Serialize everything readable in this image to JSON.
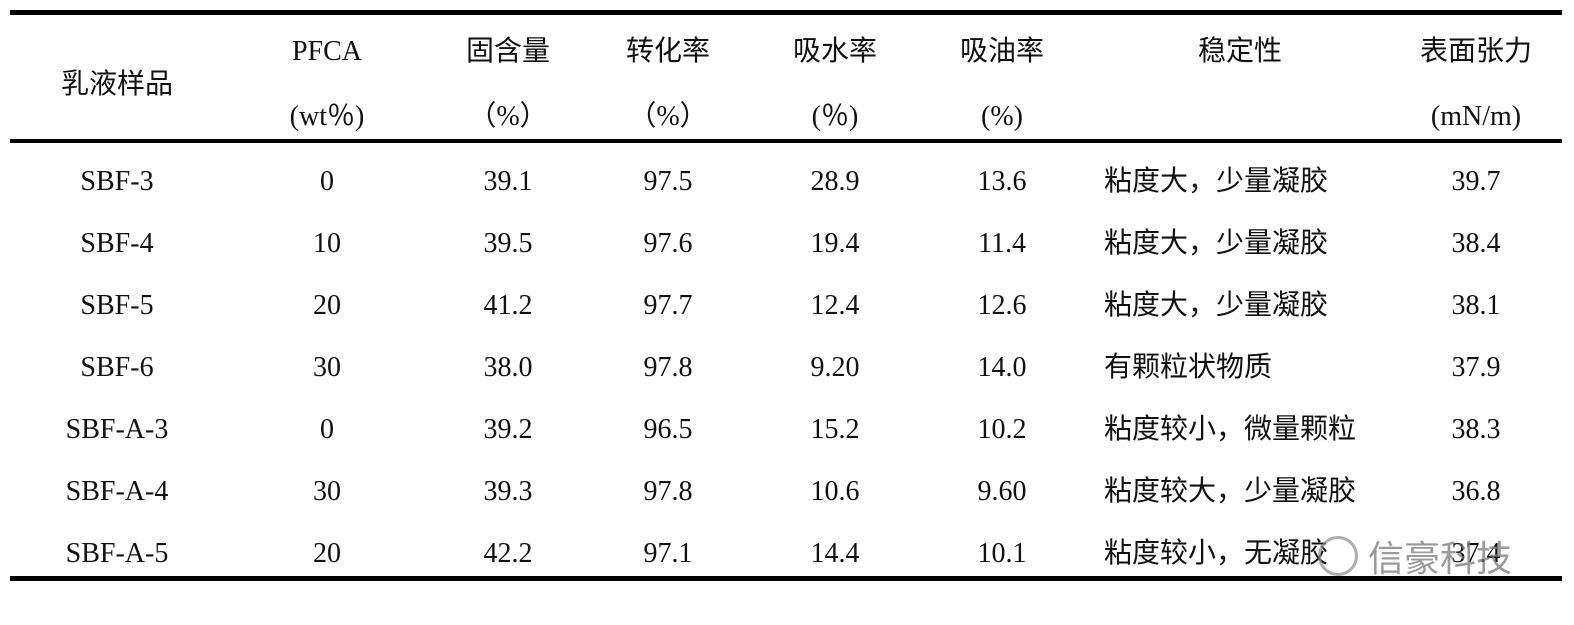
{
  "table": {
    "columns": [
      {
        "lines": [
          "乳液样品"
        ]
      },
      {
        "lines": [
          "PFCA",
          "(wt％)"
        ]
      },
      {
        "lines": [
          "固含量",
          "（%）"
        ]
      },
      {
        "lines": [
          "转化率",
          "（%）"
        ]
      },
      {
        "lines": [
          "吸水率",
          "(％)"
        ]
      },
      {
        "lines": [
          "吸油率",
          "(%)"
        ]
      },
      {
        "lines": [
          "稳定性"
        ]
      },
      {
        "lines": [
          "表面张力",
          "(mN/m)"
        ]
      }
    ],
    "rows": [
      [
        "SBF-3",
        "0",
        "39.1",
        "97.5",
        "28.9",
        "13.6",
        "粘度大，少量凝胶",
        "39.7"
      ],
      [
        "SBF-4",
        "10",
        "39.5",
        "97.6",
        "19.4",
        "11.4",
        "粘度大，少量凝胶",
        "38.4"
      ],
      [
        "SBF-5",
        "20",
        "41.2",
        "97.7",
        "12.4",
        "12.6",
        "粘度大，少量凝胶",
        "38.1"
      ],
      [
        "SBF-6",
        "30",
        "38.0",
        "97.8",
        "9.20",
        "14.0",
        "有颗粒状物质",
        "37.9"
      ],
      [
        "SBF-A-3",
        "0",
        "39.2",
        "96.5",
        "15.2",
        "10.2",
        "粘度较小，微量颗粒",
        "38.3"
      ],
      [
        "SBF-A-4",
        "30",
        "39.3",
        "97.8",
        "10.6",
        "9.60",
        "粘度较大，少量凝胶",
        "36.8"
      ],
      [
        "SBF-A-5",
        "20",
        "42.2",
        "97.1",
        "14.4",
        "10.1",
        "粘度较小，无凝胶",
        "37.4"
      ]
    ]
  },
  "watermark": "信豪科技"
}
